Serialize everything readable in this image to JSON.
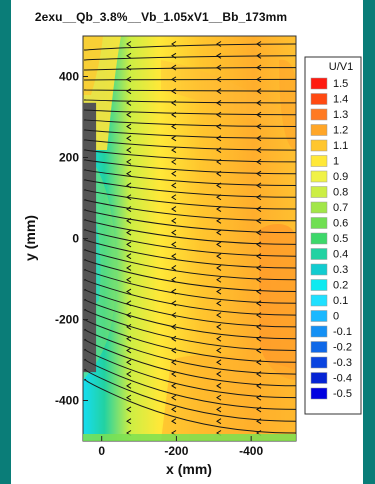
{
  "chart_data": {
    "type": "heatmap",
    "title": "2exu__Qb_3.8%__Vb_1.05xV1__Bb_173mm",
    "xlabel": "x (mm)",
    "ylabel": "y (mm)",
    "x_ticks": [
      "0",
      "-200",
      "-400"
    ],
    "y_ticks": [
      "400",
      "200",
      "0",
      "-200",
      "-400"
    ],
    "xlim": [
      50,
      -520
    ],
    "ylim": [
      -500,
      500
    ],
    "colorbar": {
      "title": "U/V1",
      "levels": [
        1.5,
        1.4,
        1.3,
        1.2,
        1.1,
        1,
        0.9,
        0.8,
        0.7,
        0.6,
        0.5,
        0.4,
        0.3,
        0.2,
        0.1,
        0,
        -0.1,
        -0.2,
        -0.3,
        -0.4,
        -0.5
      ],
      "labels": [
        "1.5",
        "1.4",
        "1.3",
        "1.2",
        "1.1",
        "1",
        "0.9",
        "0.8",
        "0.7",
        "0.6",
        "0.5",
        "0.4",
        "0.3",
        "0.2",
        "0.1",
        "0",
        "-0.1",
        "-0.2",
        "-0.3",
        "-0.4",
        "-0.5"
      ],
      "colors": [
        "#ff1a10",
        "#ff4a12",
        "#ff7a22",
        "#ffa628",
        "#ffc62e",
        "#ffe838",
        "#f0f246",
        "#ccee44",
        "#a2e648",
        "#70df52",
        "#3dd86a",
        "#22d2a2",
        "#12ccd0",
        "#0eeaf0",
        "#20e0ff",
        "#1ab8ff",
        "#1490f4",
        "#0f68e8",
        "#0a44e0",
        "#0624d4",
        "#0000e0"
      ]
    },
    "obstacle": {
      "x_range": [
        15,
        50
      ],
      "y_range": [
        -330,
        335
      ]
    },
    "grid": false,
    "legend": "right"
  }
}
